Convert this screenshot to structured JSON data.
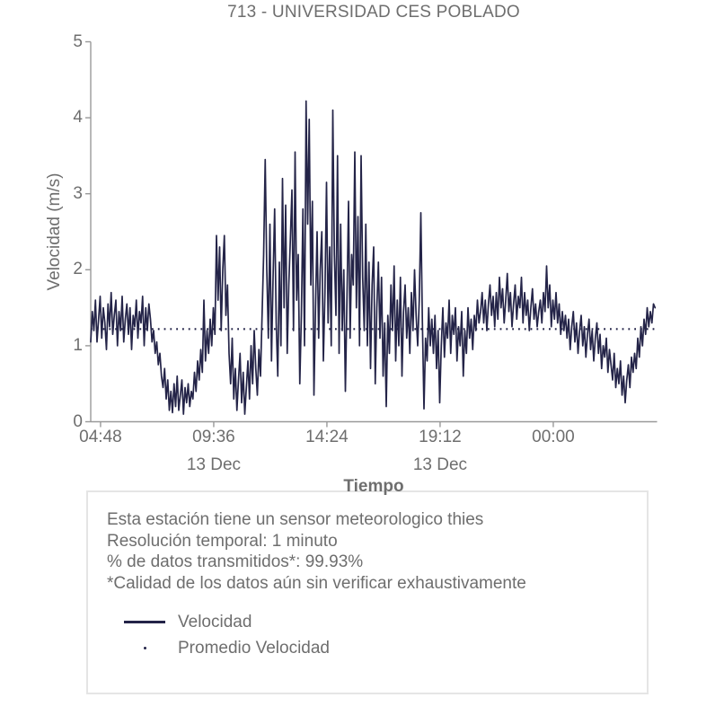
{
  "colors": {
    "line": "#242448",
    "text": "#6e6e6e",
    "axis": "#999999",
    "legend_border": "#e5e5e5"
  },
  "chart_data": {
    "type": "line",
    "title": "713 - UNIVERSIDAD CES POBLADO",
    "xlabel": "Tiempo",
    "ylabel": "Velocidad (m/s)",
    "ylim": [
      0,
      5
    ],
    "grid": false,
    "legend_position": "below",
    "y_ticks": [
      "0",
      "1",
      "2",
      "3",
      "4",
      "5"
    ],
    "x_ticks": [
      {
        "label": "04:48",
        "minute": 25
      },
      {
        "label": "09:36",
        "minute": 313
      },
      {
        "label": "14:24",
        "minute": 601
      },
      {
        "label": "19:12",
        "minute": 889
      },
      {
        "label": "00:00",
        "minute": 1177
      }
    ],
    "date_labels": [
      {
        "label": "13 Dec",
        "minute": 313
      },
      {
        "label": "13 Dec",
        "minute": 889
      }
    ],
    "x_total_minutes": 1440,
    "series": [
      {
        "name": "Velocidad",
        "style": "solid",
        "x_start_min": 0,
        "x_step_min": 4,
        "values": [
          1.05,
          1.45,
          1.2,
          1.6,
          1.05,
          1.35,
          1.65,
          1.1,
          1.5,
          1.3,
          0.95,
          1.55,
          1.25,
          1.7,
          1.15,
          1.4,
          1.6,
          1.0,
          1.45,
          1.2,
          1.65,
          1.05,
          1.35,
          1.55,
          1.15,
          1.5,
          0.95,
          1.4,
          1.25,
          1.6,
          1.1,
          1.45,
          1.3,
          1.65,
          1.0,
          1.5,
          1.2,
          1.55,
          1.35,
          1.05,
          1.2,
          0.9,
          1.05,
          0.75,
          0.9,
          0.6,
          0.45,
          0.7,
          0.3,
          0.55,
          0.15,
          0.4,
          0.12,
          0.5,
          0.2,
          0.6,
          0.15,
          0.35,
          0.55,
          0.1,
          0.45,
          0.25,
          0.5,
          0.2,
          0.4,
          0.3,
          0.65,
          0.4,
          0.8,
          0.55,
          0.95,
          0.65,
          1.6,
          0.8,
          1.2,
          0.9,
          1.35,
          1.0,
          1.5,
          1.15,
          2.45,
          1.6,
          2.3,
          1.2,
          2.0,
          2.45,
          1.4,
          1.8,
          0.9,
          0.5,
          1.1,
          0.3,
          0.7,
          0.15,
          0.55,
          0.9,
          0.25,
          0.65,
          0.1,
          0.45,
          0.8,
          0.3,
          1.0,
          0.5,
          1.2,
          0.7,
          0.35,
          0.95,
          0.6,
          1.4,
          2.2,
          3.45,
          2.0,
          1.1,
          2.6,
          0.8,
          1.9,
          2.8,
          1.3,
          0.6,
          2.1,
          1.0,
          3.2,
          1.5,
          2.85,
          0.9,
          1.8,
          2.4,
          3.05,
          1.2,
          3.55,
          1.6,
          2.2,
          0.5,
          1.4,
          2.8,
          1.0,
          4.22,
          2.6,
          3.98,
          1.8,
          2.9,
          0.35,
          1.5,
          2.5,
          1.1,
          2.0,
          2.5,
          0.8,
          1.7,
          3.15,
          1.3,
          2.3,
          1.0,
          4.1,
          2.2,
          1.4,
          3.5,
          0.9,
          2.6,
          1.2,
          2.0,
          0.4,
          1.6,
          2.9,
          1.1,
          2.2,
          1.8,
          3.55,
          1.5,
          2.7,
          1.0,
          3.5,
          1.9,
          1.2,
          2.6,
          1.0,
          2.1,
          0.7,
          1.8,
          2.3,
          0.5,
          1.5,
          2.1,
          1.1,
          1.9,
          0.6,
          1.3,
          0.2,
          1.4,
          0.9,
          1.8,
          1.2,
          2.05,
          0.8,
          1.6,
          1.0,
          1.9,
          0.6,
          1.45,
          1.8,
          1.1,
          1.5,
          0.9,
          1.7,
          1.2,
          2.0,
          1.4,
          1.0,
          1.6,
          2.75,
          1.3,
          0.17,
          1.1,
          0.8,
          1.5,
          1.0,
          1.35,
          0.9,
          1.4,
          0.7,
          1.2,
          0.25,
          1.0,
          1.5,
          0.85,
          1.3,
          1.1,
          1.6,
          0.9,
          1.4,
          1.15,
          1.5,
          0.8,
          1.25,
          1.0,
          1.45,
          0.6,
          1.2,
          0.9,
          1.5,
          1.1,
          1.35,
          0.95,
          1.4,
          1.2,
          1.6,
          1.3,
          1.45,
          1.7,
          1.3,
          1.6,
          1.2,
          1.55,
          1.8,
          1.4,
          1.65,
          1.25,
          1.7,
          1.35,
          1.9,
          1.5,
          1.75,
          1.3,
          1.6,
          1.95,
          1.45,
          1.7,
          1.25,
          1.55,
          1.8,
          1.35,
          1.65,
          1.5,
          1.9,
          1.3,
          1.7,
          1.4,
          1.6,
          1.2,
          1.5,
          1.75,
          1.35,
          1.55,
          1.25,
          1.45,
          1.6,
          1.3,
          1.7,
          1.45,
          2.05,
          1.5,
          1.8,
          1.25,
          1.6,
          1.35,
          1.7,
          1.3,
          1.55,
          1.15,
          1.45,
          1.2,
          1.4,
          1.1,
          1.35,
          0.95,
          1.25,
          1.45,
          1.05,
          1.3,
          0.9,
          1.2,
          1.4,
          1.0,
          1.25,
          0.85,
          1.15,
          1.35,
          0.95,
          1.2,
          0.8,
          1.1,
          1.3,
          0.9,
          1.15,
          0.7,
          1.0,
          0.85,
          1.1,
          0.65,
          0.95,
          0.75,
          0.55,
          0.9,
          0.45,
          0.7,
          0.5,
          0.8,
          0.35,
          0.6,
          0.25,
          0.55,
          0.75,
          0.45,
          0.85,
          0.65,
          0.9,
          0.7,
          1.1,
          0.85,
          1.25,
          1.0,
          1.35,
          1.15,
          1.5,
          1.25,
          1.45,
          1.3,
          1.55,
          1.5
        ]
      },
      {
        "name": "Promedio Velocidad",
        "style": "dotted",
        "value": 1.22
      }
    ]
  },
  "legend_box": {
    "lines": [
      "Esta estación tiene un sensor meteorologico thies",
      "Resolución temporal: 1 minuto",
      "% de datos transmitidos*: 99.93%",
      "*Calidad de los datos aún sin verificar exhaustivamente"
    ],
    "entries": [
      {
        "label": "Velocidad",
        "marker": "line"
      },
      {
        "label": "Promedio Velocidad",
        "marker": "dot"
      }
    ]
  }
}
